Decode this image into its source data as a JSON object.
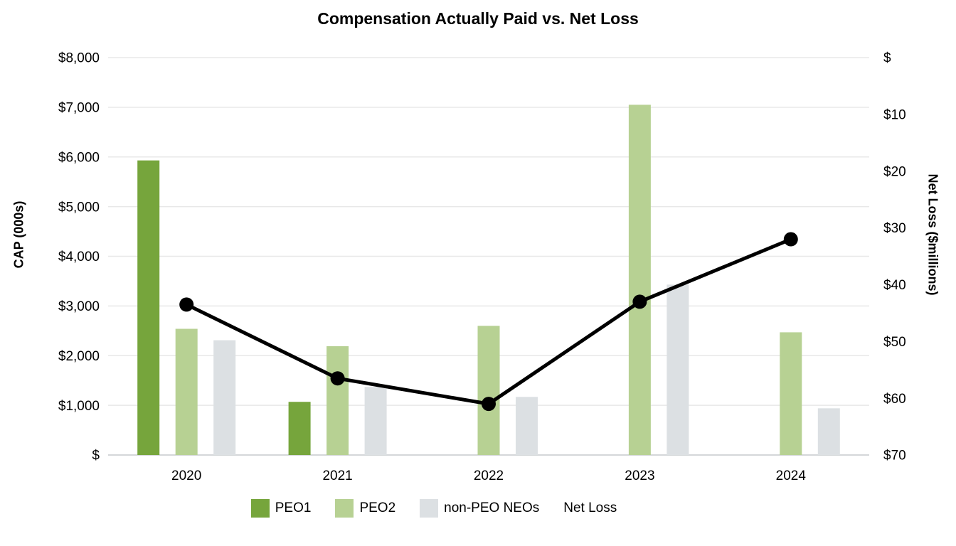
{
  "chart_data": {
    "type": "bar",
    "combo": "grouped bars on left axis with line on inverted right axis",
    "title": "Compensation Actually Paid vs. Net Loss",
    "categories": [
      "2020",
      "2021",
      "2022",
      "2023",
      "2024"
    ],
    "series": [
      {
        "name": "PEO1",
        "type": "bar",
        "axis": "left",
        "color": "#76a53c",
        "values": [
          5930,
          1070,
          null,
          null,
          null
        ]
      },
      {
        "name": "PEO2",
        "type": "bar",
        "axis": "left",
        "color": "#b7d193",
        "values": [
          2540,
          2190,
          2600,
          7050,
          2470
        ]
      },
      {
        "name": "non-PEO NEOs",
        "type": "bar",
        "axis": "left",
        "color": "#dce0e3",
        "values": [
          2310,
          1370,
          1170,
          3430,
          940
        ]
      },
      {
        "name": "Net Loss",
        "type": "line",
        "axis": "right",
        "color": "#000000",
        "values": [
          43.5,
          56.5,
          61,
          43,
          32
        ]
      }
    ],
    "left_axis": {
      "label": "CAP (000s)",
      "min": 0,
      "max": 8000,
      "tick_step": 1000,
      "ticks": [
        "$8,000",
        "$7,000",
        "$6,000",
        "$5,000",
        "$4,000",
        "$3,000",
        "$2,000",
        "$1,000",
        "$"
      ]
    },
    "right_axis": {
      "label": "Net Loss ($millions)",
      "min": 0,
      "max": 70,
      "tick_step": 10,
      "inverted": true,
      "ticks": [
        "$",
        "$10",
        "$20",
        "$30",
        "$40",
        "$50",
        "$60",
        "$70"
      ]
    },
    "legend": {
      "position": "bottom",
      "entries": [
        "PEO1",
        "PEO2",
        "non-PEO NEOs",
        "Net Loss"
      ]
    },
    "grid": "horizontal gridlines on"
  },
  "colors": {
    "peo1": "#76a53c",
    "peo2": "#b7d193",
    "non_peo_neos": "#dce0e3",
    "net_loss_line": "#000000",
    "gridline": "#e8e8e8",
    "baseline": "#d4d7d9"
  }
}
